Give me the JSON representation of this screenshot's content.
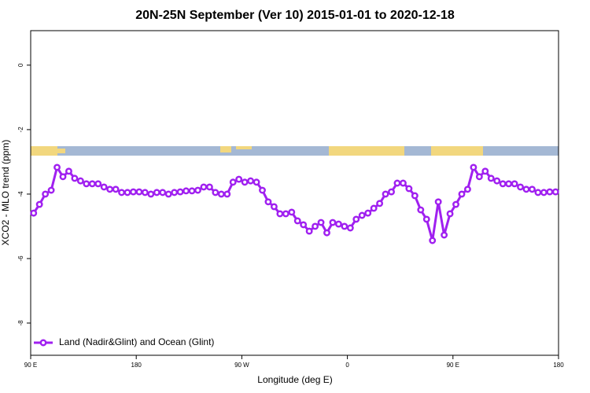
{
  "chart_data": {
    "type": "line",
    "title": "20N-25N September (Ver 10)   2015-01-01 to 2020-12-18",
    "xlabel": "Longitude (deg E)",
    "ylabel": "XCO2 - MLO trend (ppm)",
    "x": [
      92.5,
      97.5,
      102.5,
      107.5,
      112.5,
      117.5,
      122.5,
      127.5,
      132.5,
      137.5,
      142.5,
      147.5,
      152.5,
      157.5,
      162.5,
      167.5,
      172.5,
      177.5,
      182.5,
      187.5,
      192.5,
      197.5,
      202.5,
      207.5,
      212.5,
      217.5,
      222.5,
      227.5,
      232.5,
      237.5,
      242.5,
      247.5,
      252.5,
      257.5,
      262.5,
      267.5,
      272.5,
      277.5,
      282.5,
      287.5,
      292.5,
      297.5,
      302.5,
      307.5,
      312.5,
      317.5,
      322.5,
      327.5,
      332.5,
      337.5,
      342.5,
      347.5,
      352.5,
      357.5,
      362.5,
      367.5,
      372.5,
      377.5,
      382.5,
      387.5,
      392.5,
      397.5,
      402.5,
      407.5,
      412.5,
      417.5,
      422.5,
      427.5,
      432.5,
      437.5,
      442.5,
      447.5,
      452.5,
      457.5,
      462.5,
      467.5,
      472.5,
      477.5,
      482.5,
      487.5,
      492.5,
      497.5,
      502.5,
      507.5,
      512.5,
      517.5,
      522.5,
      527.5,
      532.5,
      537.5
    ],
    "series": [
      {
        "name": "Land (Nadir&Glint) and Ocean (Glint)",
        "color": "#a020f0",
        "values": [
          -4.59,
          -4.32,
          -4.0,
          -3.88,
          -3.17,
          -3.46,
          -3.29,
          -3.51,
          -3.59,
          -3.68,
          -3.68,
          -3.68,
          -3.78,
          -3.85,
          -3.85,
          -3.95,
          -3.95,
          -3.93,
          -3.93,
          -3.95,
          -4.0,
          -3.95,
          -3.95,
          -4.0,
          -3.95,
          -3.93,
          -3.9,
          -3.9,
          -3.88,
          -3.78,
          -3.78,
          -3.95,
          -4.0,
          -4.0,
          -3.63,
          -3.54,
          -3.63,
          -3.59,
          -3.63,
          -3.88,
          -4.24,
          -4.39,
          -4.61,
          -4.61,
          -4.56,
          -4.83,
          -4.95,
          -5.15,
          -5.0,
          -4.88,
          -5.2,
          -4.88,
          -4.93,
          -5.0,
          -5.05,
          -4.78,
          -4.66,
          -4.59,
          -4.44,
          -4.29,
          -4.0,
          -3.93,
          -3.66,
          -3.66,
          -3.83,
          -4.05,
          -4.49,
          -4.78,
          -5.44,
          -4.24,
          -5.27,
          -4.61,
          -4.32,
          -4.0,
          -3.85,
          -3.17,
          -3.46,
          -3.29,
          -3.51,
          -3.59,
          -3.68,
          -3.68,
          -3.68,
          -3.78,
          -3.85,
          -3.85,
          -3.95,
          -3.95,
          -3.93,
          -3.93
        ]
      }
    ],
    "xlim": [
      90,
      540
    ],
    "xticks": [
      {
        "value": 90,
        "label": "90 E"
      },
      180,
      {
        "value": 270,
        "label": "90 W"
      },
      {
        "value": 360,
        "label": "0"
      },
      {
        "value": 450,
        "label": "90 E"
      },
      {
        "value": 540,
        "label": "180"
      }
    ],
    "ylim": [
      -9,
      1.07
    ],
    "yticks": [
      0,
      -2,
      -4,
      -6,
      -8
    ],
    "legend": "lower left"
  }
}
